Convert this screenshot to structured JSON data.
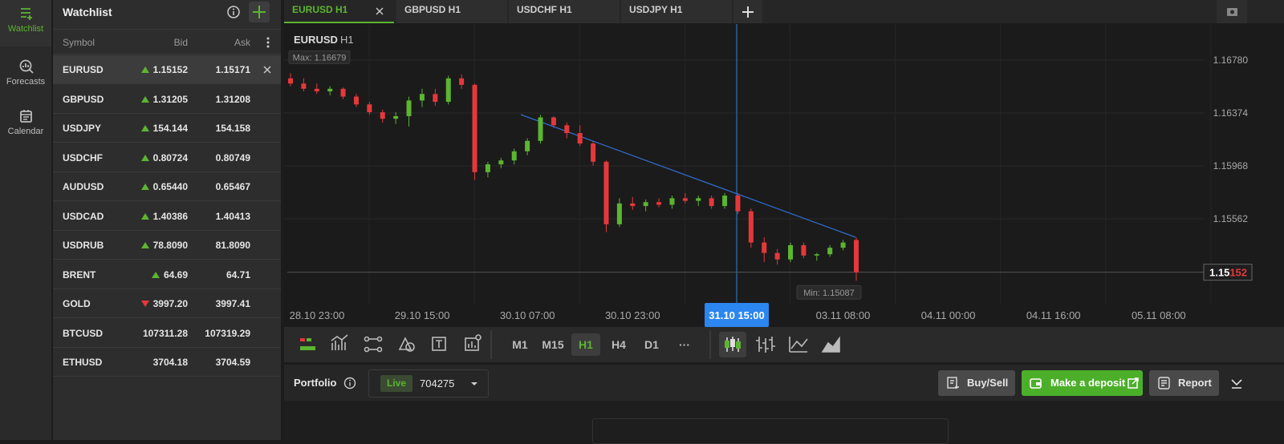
{
  "sidebar": {
    "items": [
      {
        "label": "Watchlist",
        "active": true
      },
      {
        "label": "Forecasts",
        "active": false
      },
      {
        "label": "Calendar",
        "active": false
      }
    ]
  },
  "watchlist": {
    "title": "Watchlist",
    "columns": [
      "Symbol",
      "Bid",
      "Ask"
    ],
    "selected": 0,
    "rows": [
      {
        "symbol": "EURUSD",
        "bid": "1.15152",
        "ask": "1.15171",
        "trend": "up"
      },
      {
        "symbol": "GBPUSD",
        "bid": "1.31205",
        "ask": "1.31208",
        "trend": "up"
      },
      {
        "symbol": "USDJPY",
        "bid": "154.144",
        "ask": "154.158",
        "trend": "up"
      },
      {
        "symbol": "USDCHF",
        "bid": "0.80724",
        "ask": "0.80749",
        "trend": "up"
      },
      {
        "symbol": "AUDUSD",
        "bid": "0.65440",
        "ask": "0.65467",
        "trend": "up"
      },
      {
        "symbol": "USDCAD",
        "bid": "1.40386",
        "ask": "1.40413",
        "trend": "up"
      },
      {
        "symbol": "USDRUB",
        "bid": "78.8090",
        "ask": "81.8090",
        "trend": "up"
      },
      {
        "symbol": "BRENT",
        "bid": "64.69",
        "ask": "64.71",
        "trend": "up"
      },
      {
        "symbol": "GOLD",
        "bid": "3997.20",
        "ask": "3997.41",
        "trend": "down"
      },
      {
        "symbol": "BTCUSD",
        "bid": "107311.28",
        "ask": "107319.29",
        "trend": null
      },
      {
        "symbol": "ETHUSD",
        "bid": "3704.18",
        "ask": "3704.59",
        "trend": null
      }
    ]
  },
  "tabs": {
    "items": [
      "EURUSD H1",
      "GBPUSD H1",
      "USDCHF H1",
      "USDJPY H1"
    ],
    "active": 0
  },
  "chart_data": {
    "type": "candlestick",
    "title": "EURUSD",
    "timeframe": "H1",
    "x_labels": [
      "28.10 23:00",
      "29.10 15:00",
      "30.10 07:00",
      "30.10 23:00",
      "31.10 15:00",
      "03.11 08:00",
      "04.11 00:00",
      "04.11 16:00",
      "05.11 08:00"
    ],
    "crosshair_index": 4,
    "ylim": [
      1.14904,
      1.17026
    ],
    "yticks": [
      {
        "value": 1.1678,
        "label": "1.16780"
      },
      1.16374,
      1.15968,
      1.15562
    ],
    "grid": true,
    "colors": {
      "up": "#5cb531",
      "down": "#e5383b"
    },
    "max_label": "Max: 1.16679",
    "min_label": "Min: 1.15087",
    "last_price": {
      "value": 1.15152,
      "label_main": "1.15",
      "label_accent": "152"
    },
    "candles": {
      "open": [
        1.1664,
        1.166,
        1.1656,
        1.1654,
        1.1656,
        1.165,
        1.1644,
        1.1638,
        1.1633,
        1.1635,
        1.1647,
        1.1652,
        1.1646,
        1.1664,
        1.1659,
        1.1592,
        1.1598,
        1.1601,
        1.1608,
        1.1616,
        1.1634,
        1.1628,
        1.1622,
        1.1614,
        1.16,
        1.1552,
        1.1568,
        1.1566,
        1.1569,
        1.1567,
        1.1572,
        1.157,
        1.1572,
        1.1566,
        1.1574,
        1.1562,
        1.1538,
        1.153,
        1.1525,
        1.1536,
        1.1528,
        1.1529,
        1.1534,
        1.154
      ],
      "high": [
        1.16679,
        1.1664,
        1.166,
        1.1658,
        1.1657,
        1.1652,
        1.1646,
        1.164,
        1.1638,
        1.165,
        1.1656,
        1.1656,
        1.1666,
        1.1667,
        1.166,
        1.16,
        1.1603,
        1.161,
        1.1618,
        1.1636,
        1.1635,
        1.163,
        1.1628,
        1.1616,
        1.1601,
        1.1572,
        1.1573,
        1.1571,
        1.1572,
        1.1574,
        1.1576,
        1.1574,
        1.1574,
        1.1576,
        1.1576,
        1.1564,
        1.1542,
        1.1533,
        1.1538,
        1.1538,
        1.153,
        1.1536,
        1.154,
        1.1542
      ],
      "low": [
        1.1658,
        1.1654,
        1.1652,
        1.1651,
        1.1648,
        1.1642,
        1.1636,
        1.163,
        1.1629,
        1.1627,
        1.1642,
        1.1643,
        1.1644,
        1.1656,
        1.1586,
        1.1588,
        1.1595,
        1.1598,
        1.1605,
        1.1614,
        1.1626,
        1.1618,
        1.1612,
        1.1597,
        1.1546,
        1.155,
        1.1563,
        1.1562,
        1.1565,
        1.1564,
        1.1568,
        1.1566,
        1.1564,
        1.1564,
        1.156,
        1.1534,
        1.1523,
        1.1521,
        1.1523,
        1.1526,
        1.1524,
        1.1527,
        1.1532,
        1.15087
      ],
      "close": [
        1.166,
        1.1656,
        1.1654,
        1.1656,
        1.165,
        1.1644,
        1.1638,
        1.1633,
        1.1635,
        1.1647,
        1.1652,
        1.1646,
        1.1664,
        1.1659,
        1.1592,
        1.1598,
        1.1601,
        1.1608,
        1.1616,
        1.1634,
        1.1628,
        1.1622,
        1.1614,
        1.16,
        1.1552,
        1.1568,
        1.1566,
        1.1569,
        1.1567,
        1.1572,
        1.157,
        1.1572,
        1.1566,
        1.1574,
        1.1562,
        1.1538,
        1.153,
        1.1525,
        1.1536,
        1.1528,
        1.1529,
        1.1534,
        1.1538,
        1.15152
      ]
    }
  },
  "toolbar": {
    "timeframes": [
      "M1",
      "M15",
      "H1",
      "H4",
      "D1",
      "···"
    ],
    "active": 2
  },
  "portfolio": {
    "title": "Portfolio",
    "account_type": "Live",
    "account_id": "704275",
    "buttons": [
      "Buy/Sell",
      "Make a deposit",
      "Report"
    ]
  }
}
